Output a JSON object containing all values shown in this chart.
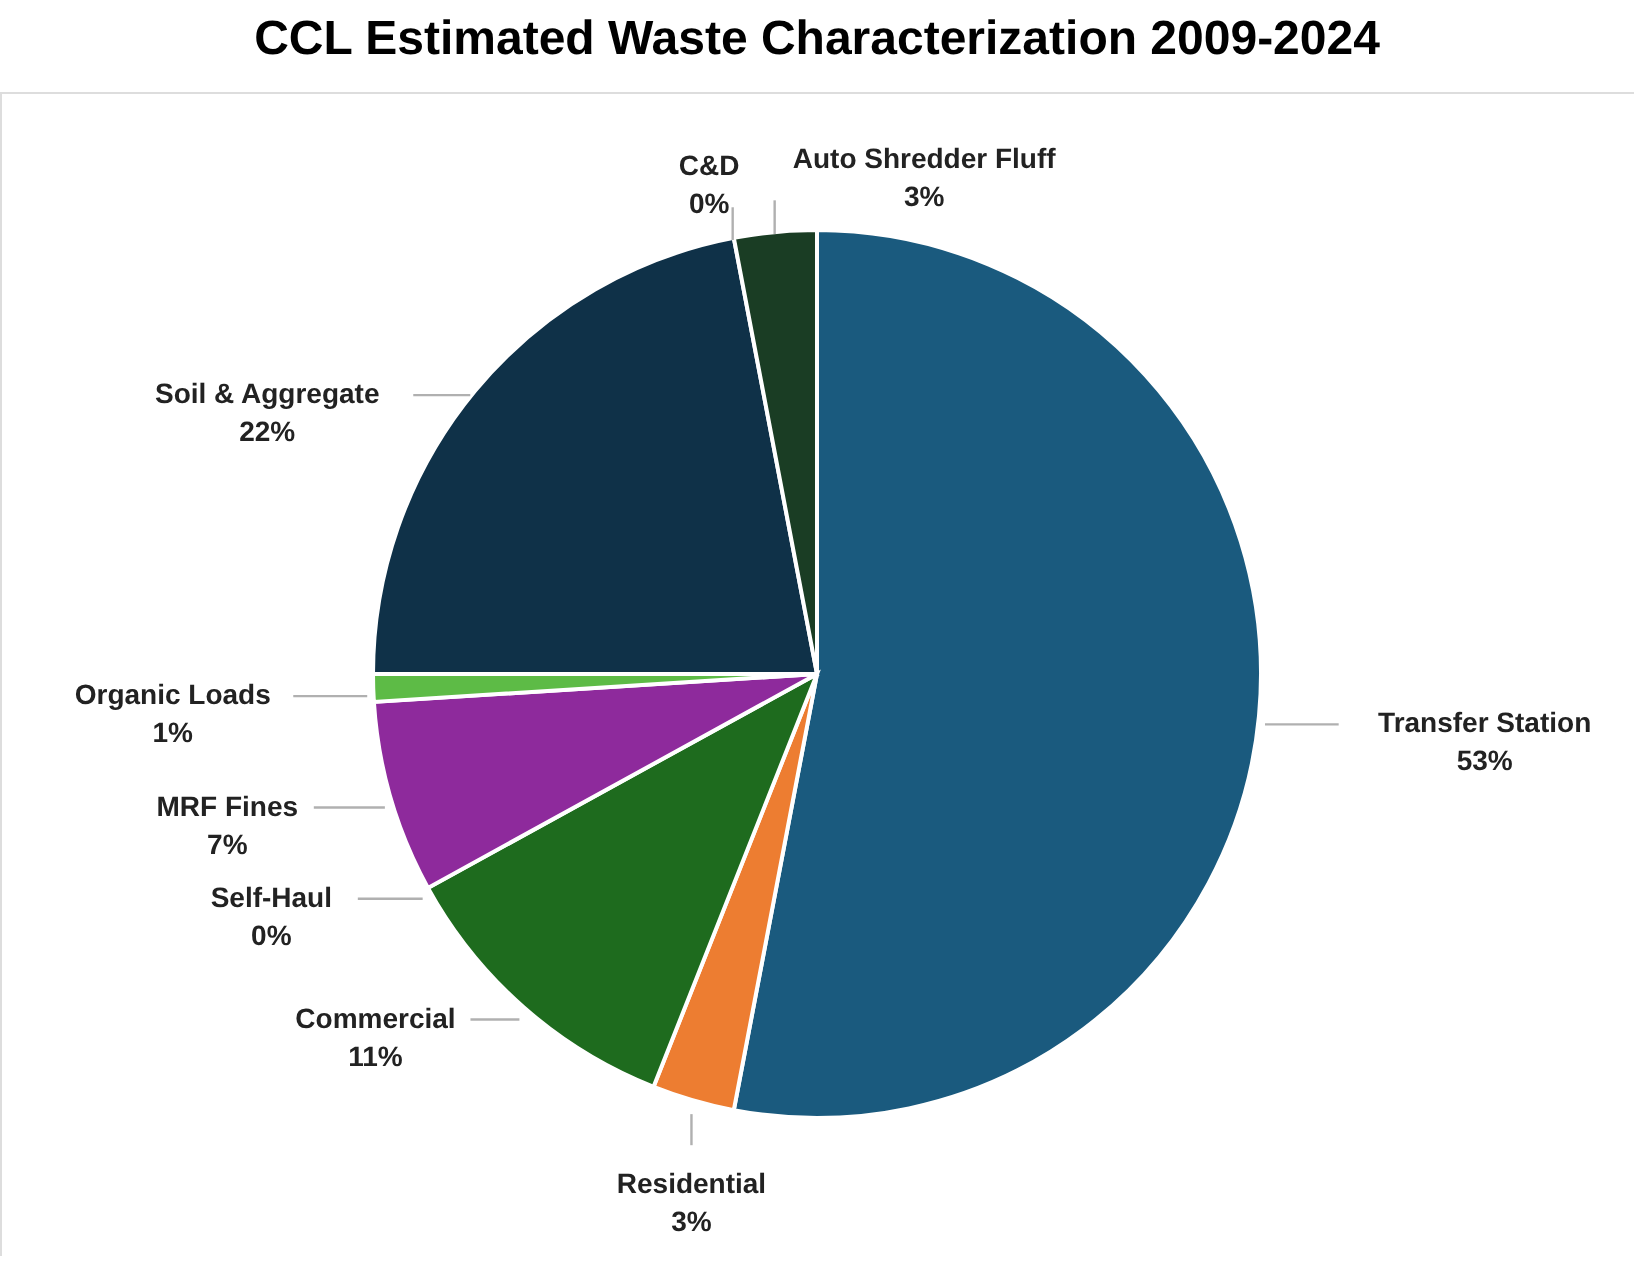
{
  "chart_data": {
    "type": "pie",
    "title": "CCL Estimated Waste Characterization 2009-2024",
    "categories": [
      "Transfer Station",
      "Residential",
      "Commercial",
      "Self-Haul",
      "MRF Fines",
      "Organic Loads",
      "Soil & Aggregate",
      "C&D",
      "Auto Shredder Fluff"
    ],
    "values": [
      53,
      3,
      11,
      0,
      7,
      1,
      22,
      0,
      3
    ],
    "value_labels": [
      "53%",
      "3%",
      "11%",
      "0%",
      "7%",
      "1%",
      "22%",
      "0%",
      "3%"
    ],
    "colors": [
      "#1a5a7e",
      "#ed7d31",
      "#1e6b1e",
      "#a5a5a5",
      "#8e2a9c",
      "#5dbb46",
      "#0f3148",
      "#ffc000",
      "#1a3d24"
    ]
  }
}
